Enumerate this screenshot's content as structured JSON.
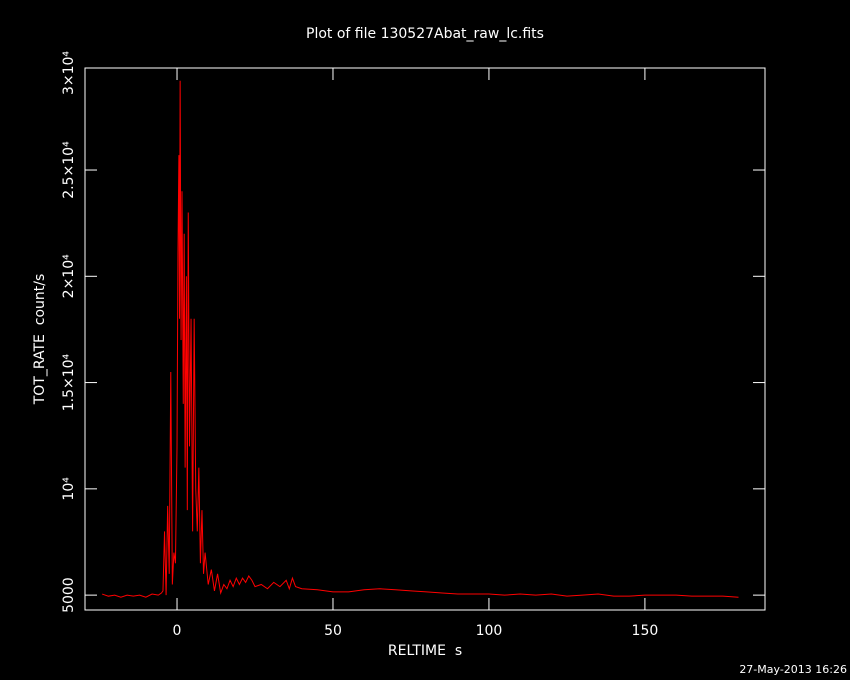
{
  "chart_data": {
    "type": "line",
    "title": "Plot of file 130527Abat_raw_lc.fits",
    "x_label": "RELTIME  s",
    "y_label": "TOT_RATE  count/s",
    "footer": "27-May-2013 16:26",
    "color": "#ff0000",
    "xlim": [
      -29.5,
      188.5
    ],
    "ylim": [
      4300,
      29800
    ],
    "xticks": [
      0,
      50,
      100,
      150
    ],
    "yticks": [
      5000,
      {
        "value": 10000,
        "label": "10⁴"
      },
      {
        "value": 15000,
        "label": "1.5×10⁴"
      },
      {
        "value": 20000,
        "label": "2×10⁴"
      },
      {
        "value": 25000,
        "label": "2.5×10⁴"
      },
      {
        "value": 30000,
        "label": "3×10⁴"
      }
    ],
    "x": [
      -24,
      -22,
      -20,
      -18,
      -16,
      -14,
      -12,
      -10,
      -8,
      -6,
      -5,
      -4.5,
      -4,
      -3.5,
      -3,
      -2.5,
      -2,
      -1.5,
      -1,
      -0.5,
      0,
      0.3,
      0.6,
      0.8,
      1,
      1.3,
      1.6,
      2,
      2.3,
      2.6,
      3,
      3.3,
      3.6,
      4,
      4.5,
      5,
      5.5,
      6,
      6.5,
      7,
      7.5,
      8,
      8.5,
      9,
      10,
      11,
      12,
      13,
      14,
      15,
      16,
      17,
      18,
      19,
      20,
      21,
      22,
      23,
      24,
      25,
      27,
      29,
      31,
      33,
      35,
      36,
      37,
      38,
      40,
      45,
      50,
      55,
      60,
      65,
      70,
      75,
      80,
      85,
      90,
      95,
      100,
      105,
      110,
      115,
      120,
      125,
      130,
      135,
      140,
      145,
      150,
      155,
      160,
      165,
      170,
      175,
      180
    ],
    "values": [
      5050,
      4950,
      5000,
      4900,
      5000,
      4950,
      5000,
      4900,
      5050,
      5000,
      5100,
      5200,
      8000,
      5000,
      9200,
      6000,
      15500,
      5500,
      7000,
      6500,
      12000,
      21000,
      25700,
      18000,
      29200,
      17000,
      24000,
      14000,
      22000,
      11000,
      20000,
      9000,
      23000,
      12000,
      18000,
      8000,
      18000,
      10000,
      8000,
      11000,
      6500,
      9000,
      6000,
      7000,
      5500,
      6200,
      5200,
      6000,
      5100,
      5500,
      5300,
      5700,
      5400,
      5800,
      5500,
      5800,
      5600,
      5900,
      5700,
      5400,
      5500,
      5300,
      5600,
      5400,
      5700,
      5300,
      5800,
      5400,
      5300,
      5250,
      5150,
      5150,
      5250,
      5300,
      5250,
      5200,
      5150,
      5100,
      5050,
      5050,
      5050,
      5000,
      5050,
      5000,
      5050,
      4950,
      5000,
      5050,
      4950,
      4950,
      5000,
      5000,
      5000,
      4950,
      4950,
      4950,
      4900
    ]
  }
}
